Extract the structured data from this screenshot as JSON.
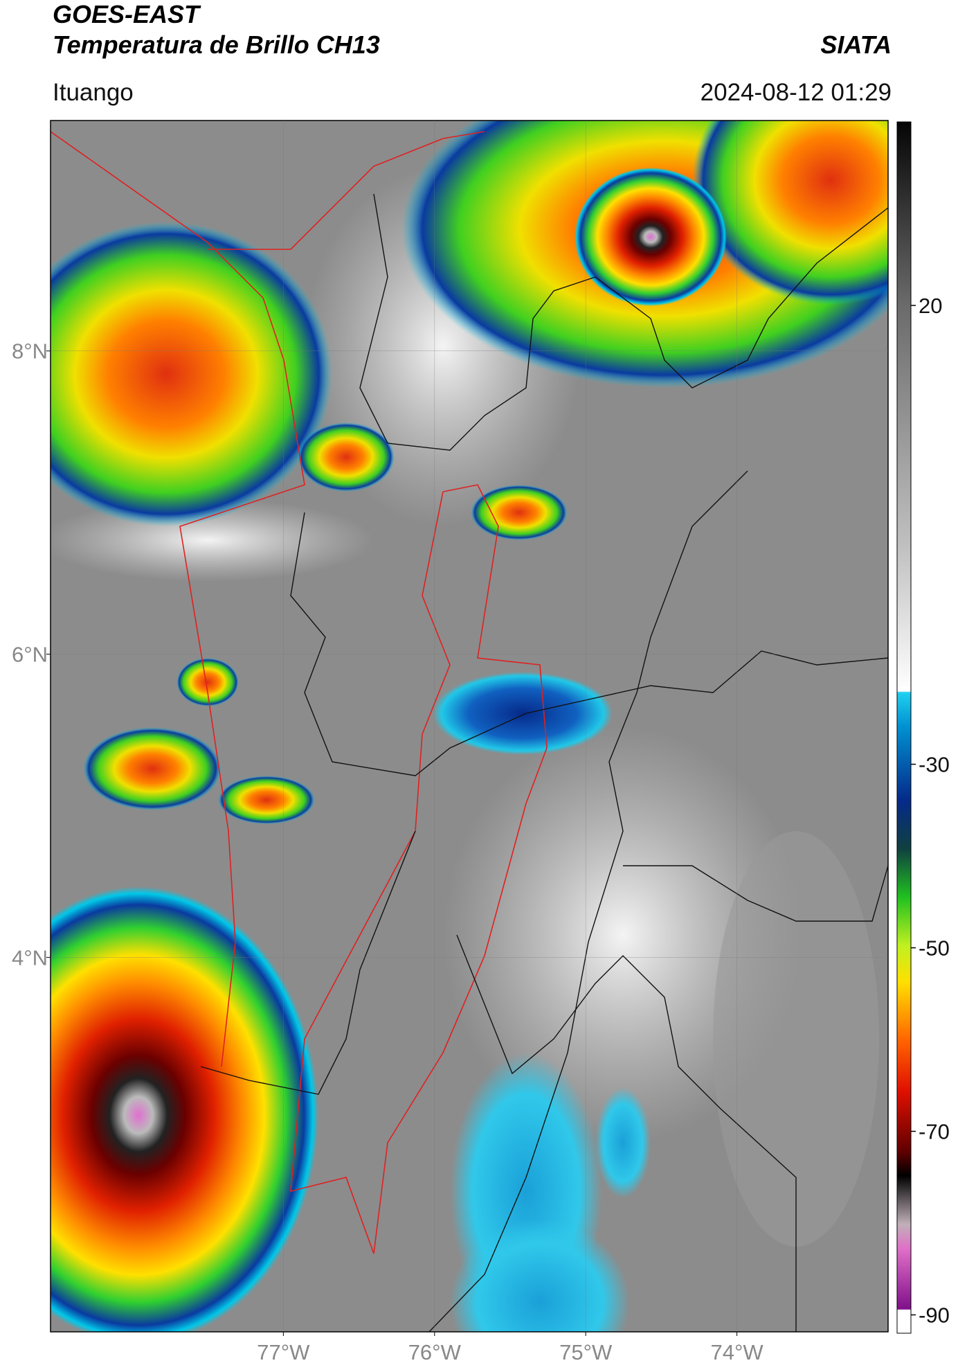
{
  "header": {
    "title": "GOES-EAST",
    "subtitle": "Temperatura de Brillo CH13",
    "source": "SIATA",
    "location": "Ituango",
    "datetime": "2024-08-12 01:29"
  },
  "map": {
    "xlim": [
      -78.54,
      -73.0
    ],
    "ylim": [
      1.53,
      9.52
    ],
    "xticks": [
      {
        "value": -77,
        "label": "77°W"
      },
      {
        "value": -76,
        "label": "76°W"
      },
      {
        "value": -75,
        "label": "75°W"
      },
      {
        "value": -74,
        "label": "74°W"
      }
    ],
    "yticks": [
      {
        "value": 8,
        "label": "8°N"
      },
      {
        "value": 6,
        "label": "6°N"
      },
      {
        "value": 4,
        "label": "4°N"
      }
    ]
  },
  "colorbar": {
    "lim": [
      -92,
      40
    ],
    "ticks": [
      20,
      -30,
      -50,
      -70,
      -90
    ]
  }
}
